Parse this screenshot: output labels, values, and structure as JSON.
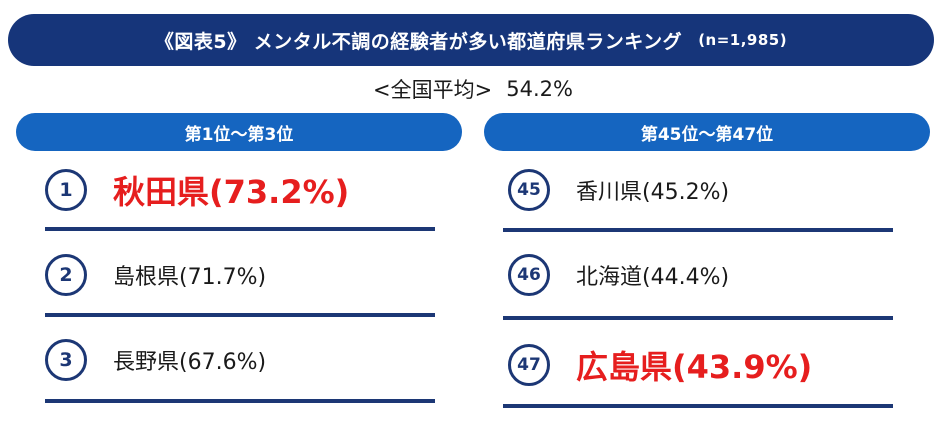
{
  "title": "《図表5》 メンタル不調の経験者が多い都道府県ランキング",
  "title_note": "(n=1,985)",
  "average_label": "<全国平均>",
  "average_value": "54.2%",
  "left_header": "第1位～第3位",
  "right_header": "第45位～第47位",
  "colors": {
    "title_bg": "#16357a",
    "header_bg": "#1565c0",
    "circle": "#1c3775",
    "highlight": "#e61e1e"
  },
  "chart_data": {
    "type": "table",
    "title": "《図表5》 メンタル不調の経験者が多い都道府県ランキング",
    "unit": "%",
    "left": [
      {
        "rank": "1",
        "prefecture": "秋田県",
        "value": 73.2,
        "label": "秋田県(73.2%)",
        "highlight": true
      },
      {
        "rank": "2",
        "prefecture": "島根県",
        "value": 71.7,
        "label": "島根県(71.7%)",
        "highlight": false
      },
      {
        "rank": "3",
        "prefecture": "長野県",
        "value": 67.6,
        "label": "長野県(67.6%)",
        "highlight": false
      }
    ],
    "right": [
      {
        "rank": "45",
        "prefecture": "香川県",
        "value": 45.2,
        "label": "香川県(45.2%)",
        "highlight": false
      },
      {
        "rank": "46",
        "prefecture": "北海道",
        "value": 44.4,
        "label": "北海道(44.4%)",
        "highlight": false
      },
      {
        "rank": "47",
        "prefecture": "広島県",
        "value": 43.9,
        "label": "広島県(43.9%)",
        "highlight": true
      }
    ]
  }
}
